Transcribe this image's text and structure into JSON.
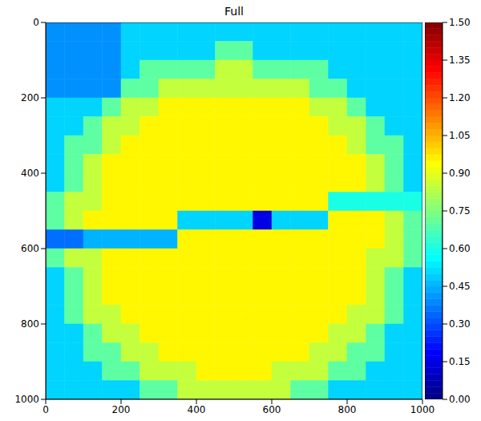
{
  "chart_data": {
    "type": "heatmap",
    "title": "Full",
    "xlim": [
      0,
      1000
    ],
    "ylim": [
      1000,
      0
    ],
    "xticks": [
      0,
      200,
      400,
      600,
      800,
      1000
    ],
    "yticks": [
      0,
      200,
      400,
      600,
      800,
      1000
    ],
    "x_edges": [
      0,
      50,
      100,
      150,
      200,
      250,
      300,
      350,
      400,
      450,
      500,
      550,
      600,
      650,
      700,
      750,
      800,
      850,
      900,
      950,
      1000
    ],
    "y_edges": [
      0,
      50,
      100,
      150,
      200,
      250,
      300,
      350,
      400,
      450,
      500,
      550,
      600,
      650,
      700,
      750,
      800,
      850,
      900,
      950,
      1000
    ],
    "cells": [
      [
        0.4,
        0.4,
        0.4,
        0.4,
        0.5,
        0.5,
        0.5,
        0.5,
        0.5,
        0.5,
        0.5,
        0.5,
        0.5,
        0.5,
        0.5,
        0.5,
        0.5,
        0.5,
        0.5,
        0.5
      ],
      [
        0.4,
        0.4,
        0.4,
        0.4,
        0.5,
        0.5,
        0.5,
        0.5,
        0.5,
        0.7,
        0.7,
        0.5,
        0.5,
        0.5,
        0.5,
        0.5,
        0.5,
        0.5,
        0.5,
        0.5
      ],
      [
        0.4,
        0.4,
        0.4,
        0.4,
        0.5,
        0.7,
        0.7,
        0.7,
        0.7,
        0.85,
        0.85,
        0.7,
        0.7,
        0.7,
        0.7,
        0.5,
        0.5,
        0.5,
        0.5,
        0.5
      ],
      [
        0.4,
        0.4,
        0.4,
        0.4,
        0.7,
        0.7,
        0.85,
        0.85,
        0.85,
        0.85,
        0.85,
        0.85,
        0.85,
        0.85,
        0.7,
        0.7,
        0.5,
        0.5,
        0.5,
        0.5
      ],
      [
        0.5,
        0.5,
        0.5,
        0.7,
        0.85,
        0.85,
        0.95,
        0.95,
        0.95,
        0.95,
        0.95,
        0.95,
        0.95,
        0.95,
        0.85,
        0.85,
        0.7,
        0.5,
        0.5,
        0.5
      ],
      [
        0.5,
        0.5,
        0.7,
        0.85,
        0.85,
        0.95,
        0.95,
        0.95,
        0.95,
        0.95,
        0.95,
        0.95,
        0.95,
        0.95,
        0.95,
        0.85,
        0.85,
        0.7,
        0.5,
        0.5
      ],
      [
        0.5,
        0.7,
        0.7,
        0.85,
        0.95,
        0.95,
        0.95,
        0.95,
        0.95,
        0.95,
        0.95,
        0.95,
        0.95,
        0.95,
        0.95,
        0.95,
        0.85,
        0.7,
        0.7,
        0.5
      ],
      [
        0.5,
        0.7,
        0.85,
        0.95,
        0.95,
        0.95,
        0.95,
        0.95,
        0.95,
        0.95,
        0.95,
        0.95,
        0.95,
        0.95,
        0.95,
        0.95,
        0.95,
        0.85,
        0.7,
        0.5
      ],
      [
        0.5,
        0.7,
        0.85,
        0.95,
        0.95,
        0.95,
        0.95,
        0.95,
        0.95,
        0.95,
        0.95,
        0.95,
        0.95,
        0.95,
        0.95,
        0.95,
        0.95,
        0.85,
        0.7,
        0.5
      ],
      [
        0.7,
        0.85,
        0.85,
        0.95,
        0.95,
        0.95,
        0.95,
        0.95,
        0.95,
        0.95,
        0.95,
        0.95,
        0.95,
        0.95,
        0.95,
        0.6,
        0.6,
        0.6,
        0.6,
        0.6
      ],
      [
        0.7,
        0.85,
        0.95,
        0.95,
        0.95,
        0.95,
        0.95,
        0.5,
        0.5,
        0.5,
        0.5,
        0.15,
        0.5,
        0.5,
        0.5,
        0.95,
        0.95,
        0.95,
        0.85,
        0.7
      ],
      [
        0.35,
        0.35,
        0.45,
        0.45,
        0.45,
        0.45,
        0.45,
        0.95,
        0.95,
        0.95,
        0.95,
        0.95,
        0.95,
        0.95,
        0.95,
        0.95,
        0.95,
        0.95,
        0.85,
        0.7
      ],
      [
        0.7,
        0.85,
        0.85,
        0.95,
        0.95,
        0.95,
        0.95,
        0.95,
        0.95,
        0.95,
        0.95,
        0.95,
        0.95,
        0.95,
        0.95,
        0.95,
        0.95,
        0.85,
        0.85,
        0.7
      ],
      [
        0.5,
        0.7,
        0.85,
        0.95,
        0.95,
        0.95,
        0.95,
        0.95,
        0.95,
        0.95,
        0.95,
        0.95,
        0.95,
        0.95,
        0.95,
        0.95,
        0.95,
        0.85,
        0.7,
        0.5
      ],
      [
        0.5,
        0.7,
        0.85,
        0.95,
        0.95,
        0.95,
        0.95,
        0.95,
        0.95,
        0.95,
        0.95,
        0.95,
        0.95,
        0.95,
        0.95,
        0.95,
        0.95,
        0.85,
        0.7,
        0.5
      ],
      [
        0.5,
        0.7,
        0.85,
        0.85,
        0.95,
        0.95,
        0.95,
        0.95,
        0.95,
        0.95,
        0.95,
        0.95,
        0.95,
        0.95,
        0.95,
        0.95,
        0.85,
        0.85,
        0.7,
        0.5
      ],
      [
        0.5,
        0.5,
        0.7,
        0.85,
        0.85,
        0.95,
        0.95,
        0.95,
        0.95,
        0.95,
        0.95,
        0.95,
        0.95,
        0.95,
        0.95,
        0.85,
        0.85,
        0.7,
        0.5,
        0.5
      ],
      [
        0.5,
        0.5,
        0.7,
        0.7,
        0.85,
        0.85,
        0.95,
        0.95,
        0.95,
        0.95,
        0.95,
        0.95,
        0.95,
        0.95,
        0.85,
        0.85,
        0.7,
        0.7,
        0.5,
        0.5
      ],
      [
        0.5,
        0.5,
        0.5,
        0.7,
        0.7,
        0.85,
        0.85,
        0.85,
        0.95,
        0.95,
        0.95,
        0.95,
        0.85,
        0.85,
        0.85,
        0.7,
        0.7,
        0.5,
        0.5,
        0.5
      ],
      [
        0.5,
        0.5,
        0.5,
        0.5,
        0.5,
        0.7,
        0.7,
        0.85,
        0.85,
        0.85,
        0.85,
        0.85,
        0.85,
        0.7,
        0.7,
        0.5,
        0.5,
        0.5,
        0.5,
        0.5
      ]
    ],
    "colorbar": {
      "range": [
        0,
        1.5
      ],
      "ticks": [
        {
          "value": 0,
          "label": "0.00"
        },
        {
          "value": 0.15,
          "label": "0.15"
        },
        {
          "value": 0.3,
          "label": "0.30"
        },
        {
          "value": 0.45,
          "label": "0.45"
        },
        {
          "value": 0.6,
          "label": "0.60"
        },
        {
          "value": 0.75,
          "label": "0.75"
        },
        {
          "value": 0.9,
          "label": "0.90"
        },
        {
          "value": 1.05,
          "label": "1.05"
        },
        {
          "value": 1.2,
          "label": "1.20"
        },
        {
          "value": 1.35,
          "label": "1.35"
        },
        {
          "value": 1.5,
          "label": "1.50"
        }
      ]
    }
  }
}
